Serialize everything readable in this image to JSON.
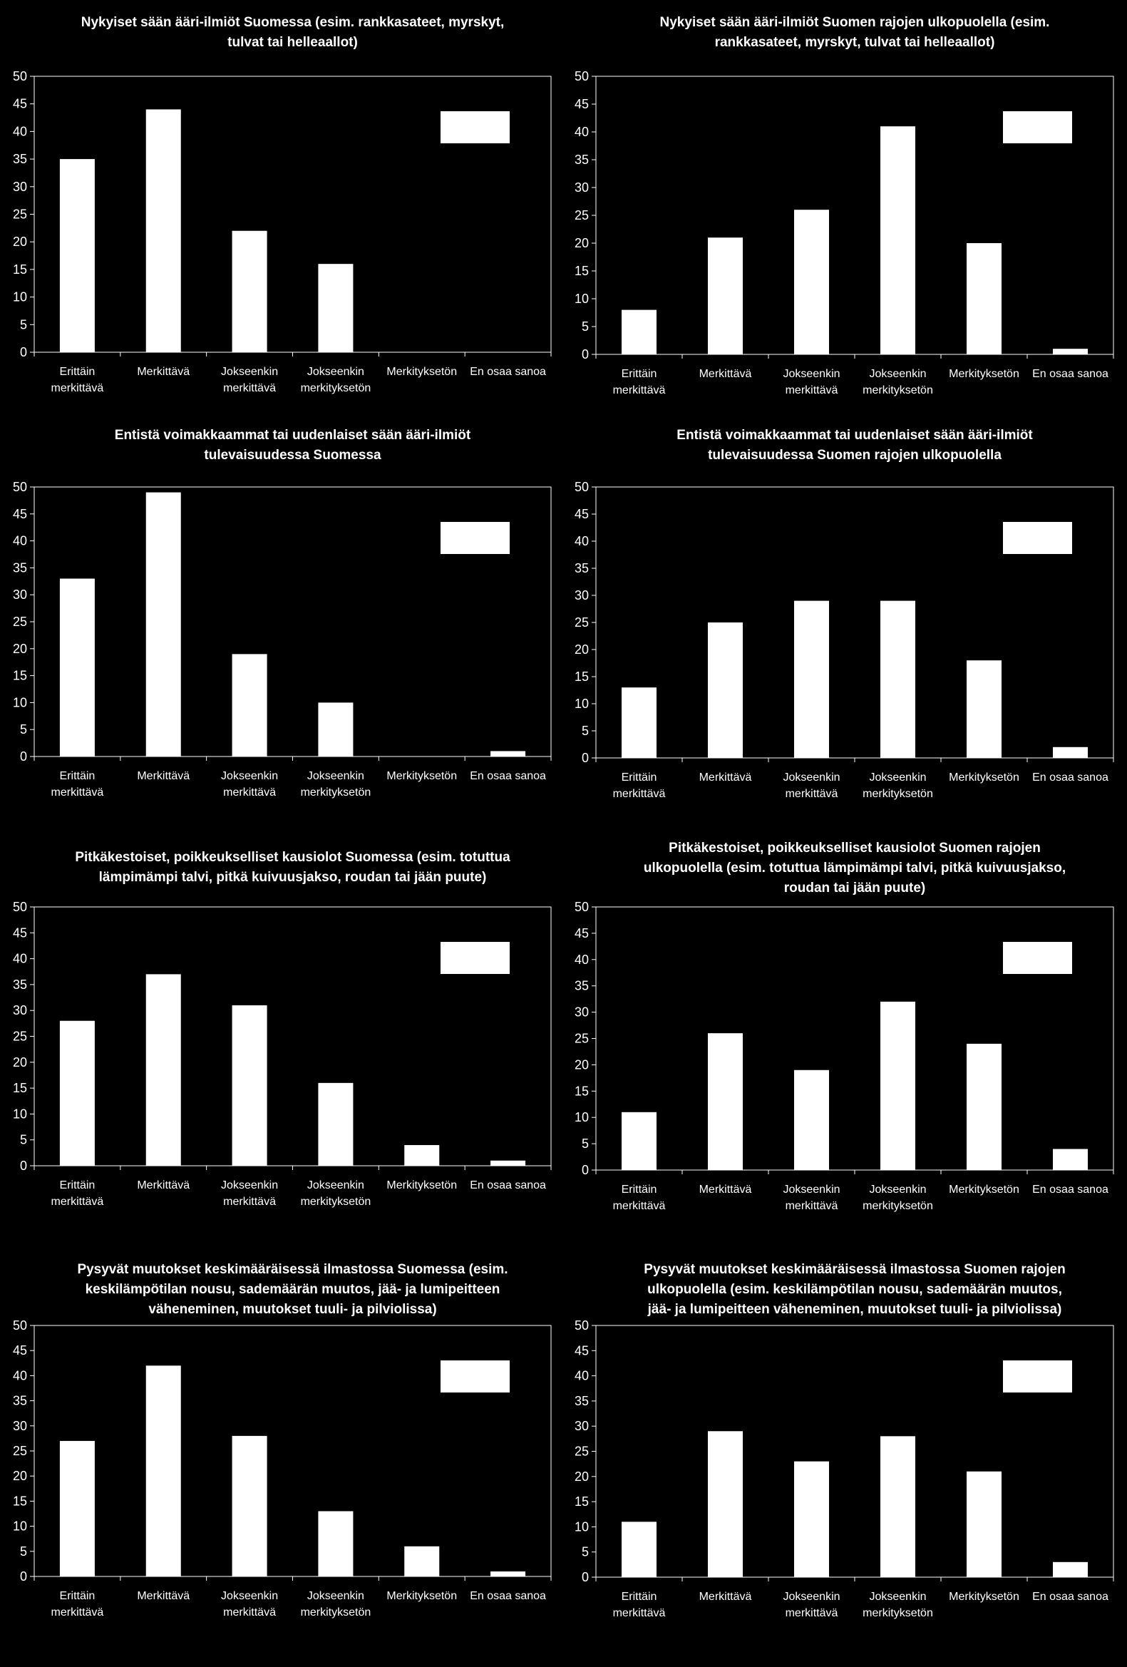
{
  "chart_data": [
    {
      "type": "bar",
      "title": [
        "Nykyiset sään ääri-ilmiöt Suomessa (esim. rankkasateet, myrskyt,",
        "tulvat tai helleaallot)"
      ],
      "categories": [
        [
          "Erittäin",
          "merkittävä"
        ],
        [
          "Merkittävä"
        ],
        [
          "Jokseenkin",
          "merkittävä"
        ],
        [
          "Jokseenkin",
          "merkityksetön"
        ],
        [
          "Merkityksetön"
        ],
        [
          "En osaa sanoa"
        ]
      ],
      "values": [
        35,
        44,
        22,
        16,
        0,
        0
      ],
      "ylim": [
        0,
        50
      ],
      "yticks": [
        0,
        5,
        10,
        15,
        20,
        25,
        30,
        35,
        40,
        45,
        50
      ],
      "bar_color": "#ffffff",
      "legend": "top-right"
    },
    {
      "type": "bar",
      "title": [
        "Nykyiset sään ääri-ilmiöt Suomen rajojen ulkopuolella (esim.",
        "rankkasateet, myrskyt, tulvat tai helleaallot)"
      ],
      "categories": [
        [
          "Erittäin",
          "merkittävä"
        ],
        [
          "Merkittävä"
        ],
        [
          "Jokseenkin",
          "merkittävä"
        ],
        [
          "Jokseenkin",
          "merkityksetön"
        ],
        [
          "Merkityksetön"
        ],
        [
          "En osaa sanoa"
        ]
      ],
      "values": [
        8,
        21,
        26,
        41,
        20,
        1
      ],
      "ylim": [
        0,
        50
      ],
      "yticks": [
        0,
        5,
        10,
        15,
        20,
        25,
        30,
        35,
        40,
        45,
        50
      ],
      "bar_color": "#ffffff",
      "legend": "top-right"
    },
    {
      "type": "bar",
      "title": [
        "Entistä voimakkaammat tai uudenlaiset sään ääri-ilmiöt",
        "tulevaisuudessa Suomessa"
      ],
      "categories": [
        [
          "Erittäin",
          "merkittävä"
        ],
        [
          "Merkittävä"
        ],
        [
          "Jokseenkin",
          "merkittävä"
        ],
        [
          "Jokseenkin",
          "merkityksetön"
        ],
        [
          "Merkityksetön"
        ],
        [
          "En osaa sanoa"
        ]
      ],
      "values": [
        33,
        49,
        19,
        10,
        0,
        1
      ],
      "ylim": [
        0,
        50
      ],
      "yticks": [
        0,
        5,
        10,
        15,
        20,
        25,
        30,
        35,
        40,
        45,
        50
      ],
      "bar_color": "#ffffff",
      "legend": "top-right"
    },
    {
      "type": "bar",
      "title": [
        "Entistä voimakkaammat tai uudenlaiset sään ääri-ilmiöt",
        "tulevaisuudessa Suomen rajojen ulkopuolella"
      ],
      "categories": [
        [
          "Erittäin",
          "merkittävä"
        ],
        [
          "Merkittävä"
        ],
        [
          "Jokseenkin",
          "merkittävä"
        ],
        [
          "Jokseenkin",
          "merkityksetön"
        ],
        [
          "Merkityksetön"
        ],
        [
          "En osaa sanoa"
        ]
      ],
      "values": [
        13,
        25,
        29,
        29,
        18,
        2
      ],
      "ylim": [
        0,
        50
      ],
      "yticks": [
        0,
        5,
        10,
        15,
        20,
        25,
        30,
        35,
        40,
        45,
        50
      ],
      "bar_color": "#ffffff",
      "legend": "top-right"
    },
    {
      "type": "bar",
      "title": [
        "Pitkäkestoiset, poikkeukselliset kausiolot Suomessa (esim. totuttua",
        "lämpimämpi talvi, pitkä kuivuusjakso, roudan tai jään puute)"
      ],
      "categories": [
        [
          "Erittäin",
          "merkittävä"
        ],
        [
          "Merkittävä"
        ],
        [
          "Jokseenkin",
          "merkittävä"
        ],
        [
          "Jokseenkin",
          "merkityksetön"
        ],
        [
          "Merkityksetön"
        ],
        [
          "En osaa sanoa"
        ]
      ],
      "values": [
        28,
        37,
        31,
        16,
        4,
        1
      ],
      "ylim": [
        0,
        50
      ],
      "yticks": [
        0,
        5,
        10,
        15,
        20,
        25,
        30,
        35,
        40,
        45,
        50
      ],
      "bar_color": "#ffffff",
      "legend": "top-right"
    },
    {
      "type": "bar",
      "title": [
        "Pitkäkestoiset, poikkeukselliset kausiolot Suomen rajojen",
        "ulkopuolella (esim. totuttua lämpimämpi talvi, pitkä kuivuusjakso,",
        "roudan tai jään puute)"
      ],
      "categories": [
        [
          "Erittäin",
          "merkittävä"
        ],
        [
          "Merkittävä"
        ],
        [
          "Jokseenkin",
          "merkittävä"
        ],
        [
          "Jokseenkin",
          "merkityksetön"
        ],
        [
          "Merkityksetön"
        ],
        [
          "En osaa sanoa"
        ]
      ],
      "values": [
        11,
        26,
        19,
        32,
        24,
        4
      ],
      "ylim": [
        0,
        50
      ],
      "yticks": [
        0,
        5,
        10,
        15,
        20,
        25,
        30,
        35,
        40,
        45,
        50
      ],
      "bar_color": "#ffffff",
      "legend": "top-right"
    },
    {
      "type": "bar",
      "title": [
        "Pysyvät muutokset keskimääräisessä ilmastossa Suomessa (esim.",
        "keskilämpötilan nousu, sademäärän muutos, jää- ja lumipeitteen",
        "väheneminen, muutokset tuuli- ja pilviolissa)"
      ],
      "categories": [
        [
          "Erittäin",
          "merkittävä"
        ],
        [
          "Merkittävä"
        ],
        [
          "Jokseenkin",
          "merkittävä"
        ],
        [
          "Jokseenkin",
          "merkityksetön"
        ],
        [
          "Merkityksetön"
        ],
        [
          "En osaa sanoa"
        ]
      ],
      "values": [
        27,
        42,
        28,
        13,
        6,
        1
      ],
      "ylim": [
        0,
        50
      ],
      "yticks": [
        0,
        5,
        10,
        15,
        20,
        25,
        30,
        35,
        40,
        45,
        50
      ],
      "bar_color": "#ffffff",
      "legend": "top-right"
    },
    {
      "type": "bar",
      "title": [
        "Pysyvät muutokset keskimääräisessä ilmastossa Suomen rajojen",
        "ulkopuolella (esim. keskilämpötilan nousu, sademäärän muutos,",
        "jää- ja lumipeitteen väheneminen, muutokset tuuli- ja pilviolissa)"
      ],
      "categories": [
        [
          "Erittäin",
          "merkittävä"
        ],
        [
          "Merkittävä"
        ],
        [
          "Jokseenkin",
          "merkittävä"
        ],
        [
          "Jokseenkin",
          "merkityksetön"
        ],
        [
          "Merkityksetön"
        ],
        [
          "En osaa sanoa"
        ]
      ],
      "values": [
        11,
        29,
        23,
        28,
        21,
        3
      ],
      "ylim": [
        0,
        50
      ],
      "yticks": [
        0,
        5,
        10,
        15,
        20,
        25,
        30,
        35,
        40,
        45,
        50
      ],
      "bar_color": "#ffffff",
      "legend": "top-right"
    }
  ]
}
